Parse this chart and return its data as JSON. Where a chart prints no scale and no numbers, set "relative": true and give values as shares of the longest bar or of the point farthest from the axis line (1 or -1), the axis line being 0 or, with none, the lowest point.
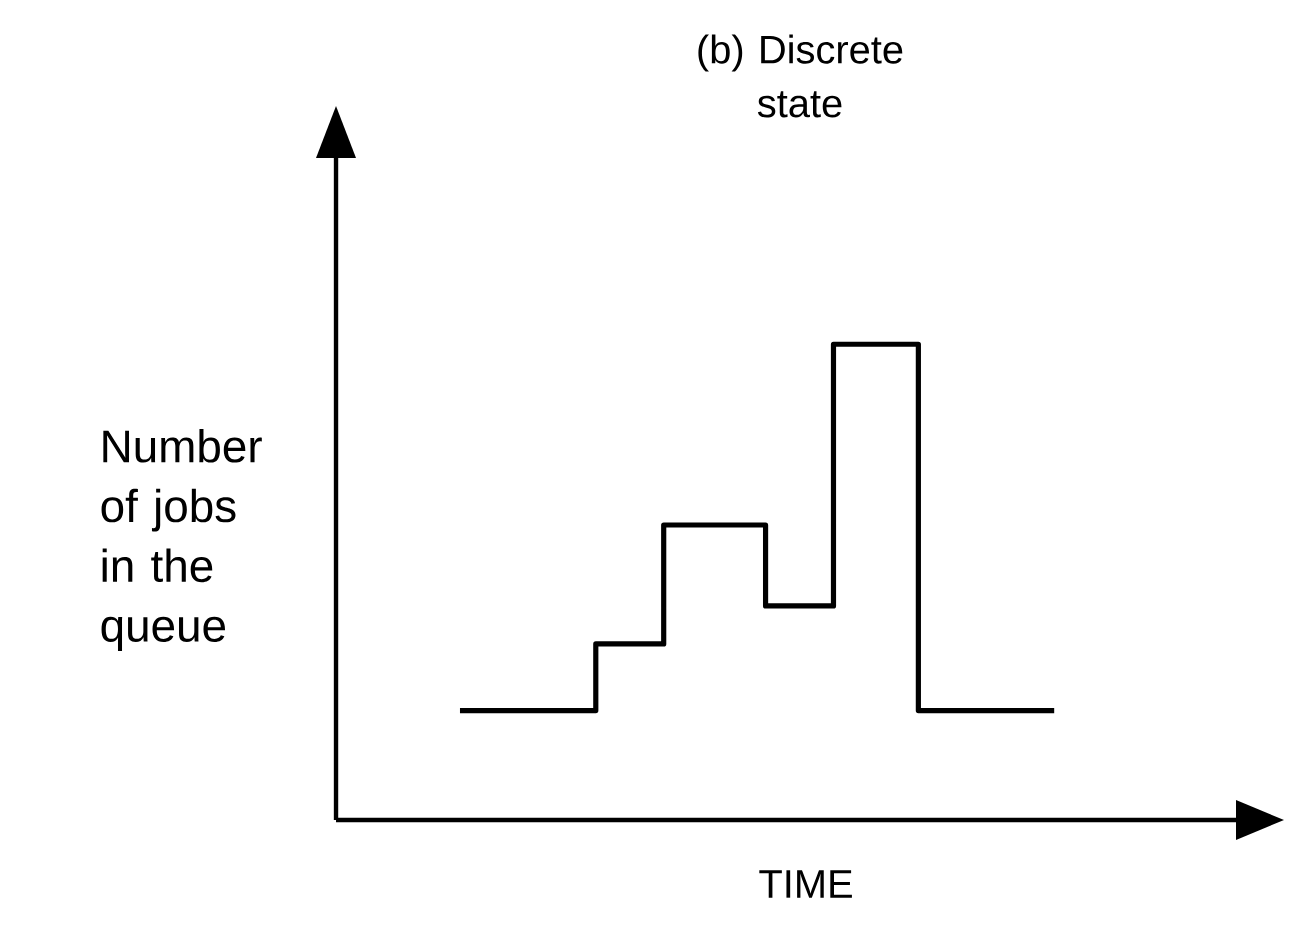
{
  "chart_data": {
    "type": "step",
    "title": "(b) Discrete state",
    "xlabel": "TIME",
    "ylabel": "Number of jobs in the queue",
    "relative": true,
    "tick_labels": false,
    "color": "#000000",
    "categories": [
      null,
      null,
      null,
      null,
      null,
      null,
      null,
      null,
      null,
      null,
      null,
      null,
      null,
      null,
      null,
      null,
      null,
      null,
      null,
      null,
      null,
      null,
      null,
      null,
      null,
      null,
      null,
      null,
      null,
      null,
      null,
      null,
      null,
      null,
      null,
      null
    ],
    "values": [
      0.23,
      0.23,
      0.23,
      0.23,
      0.23,
      0.23,
      0.23,
      0.23,
      0.37,
      0.37,
      0.37,
      0.37,
      0.62,
      0.62,
      0.62,
      0.62,
      0.62,
      0.62,
      0.45,
      0.45,
      0.45,
      0.45,
      1,
      1,
      1,
      1,
      1,
      0.23,
      0.23,
      0.23,
      0.23,
      0.23,
      0.23,
      0.23,
      0.23,
      0.23
    ]
  }
}
